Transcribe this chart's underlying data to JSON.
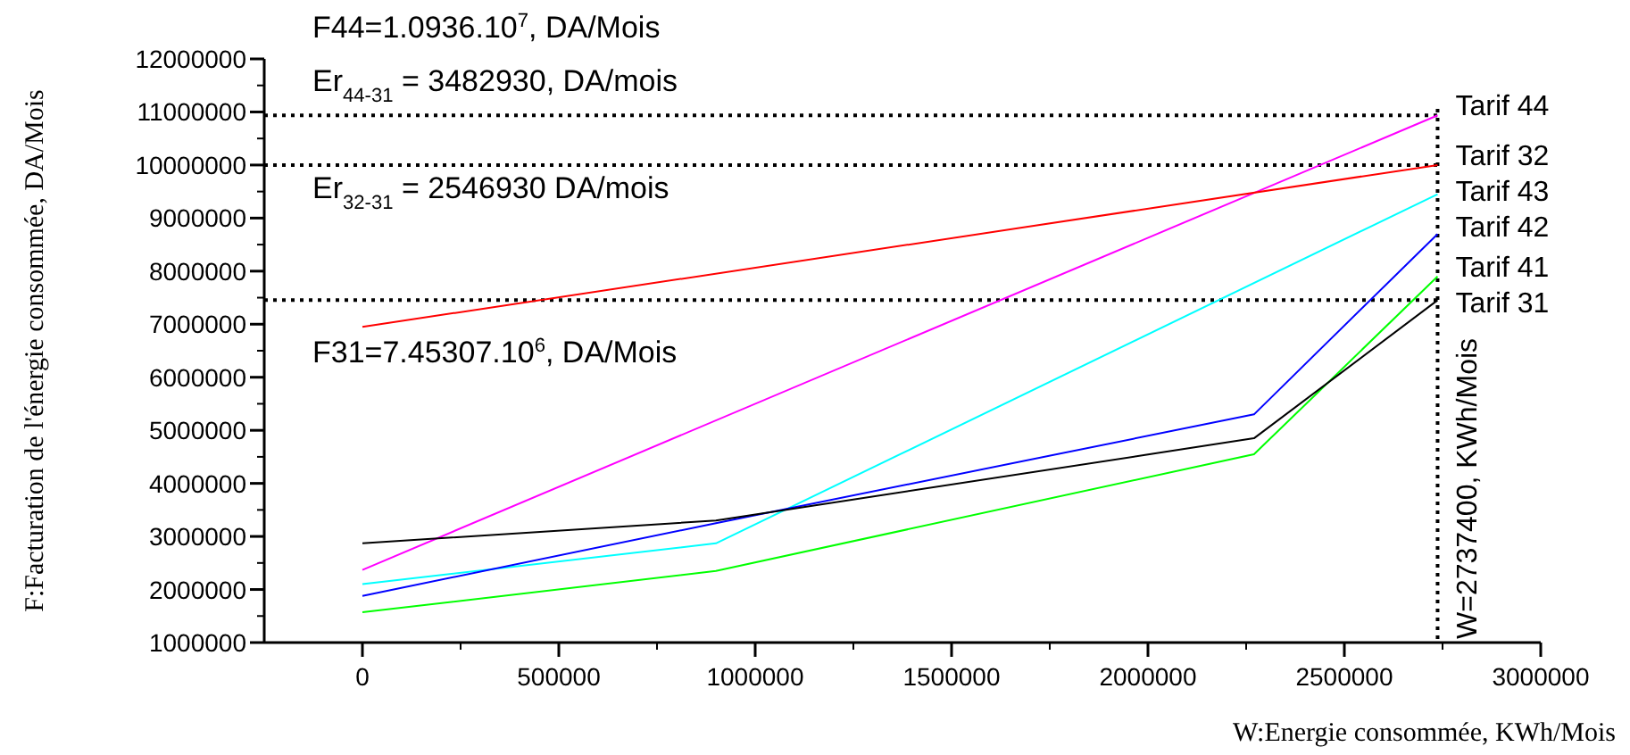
{
  "chart_data": {
    "type": "line",
    "xlabel": "W:Energie consommée, KWh/Mois",
    "ylabel": "F:Facturation de l'énergie consommée, DA/Mois",
    "xlim": [
      -250000,
      3000000
    ],
    "xticks": [
      0,
      500000,
      1000000,
      1500000,
      2000000,
      2500000,
      3000000
    ],
    "ylim": [
      1000000,
      12000000
    ],
    "yticks": [
      1000000,
      2000000,
      3000000,
      4000000,
      5000000,
      6000000,
      7000000,
      8000000,
      9000000,
      10000000,
      11000000,
      12000000
    ],
    "grid": false,
    "marker": "none",
    "line_style": "solid",
    "series": [
      {
        "name": "Tarif 44",
        "color": "#ff00ff",
        "x": [
          0,
          2737400
        ],
        "values": [
          2370000,
          10936000
        ]
      },
      {
        "name": "Tarif 32",
        "color": "#ff0000",
        "x": [
          0,
          2737400
        ],
        "values": [
          6950000,
          10000000
        ]
      },
      {
        "name": "Tarif 43",
        "color": "#00ffff",
        "x": [
          0,
          900000,
          2737400
        ],
        "values": [
          2100000,
          2870000,
          9450000
        ]
      },
      {
        "name": "Tarif 42",
        "color": "#0000ff",
        "x": [
          0,
          900000,
          2270000,
          2737400
        ],
        "values": [
          1880000,
          3250000,
          5300000,
          8700000
        ]
      },
      {
        "name": "Tarif 41",
        "color": "#00ff00",
        "x": [
          0,
          900000,
          2270000,
          2737400
        ],
        "values": [
          1570000,
          2350000,
          4550000,
          7900000
        ]
      },
      {
        "name": "Tarif 31",
        "color": "#000000",
        "x": [
          0,
          900000,
          2270000,
          2737400
        ],
        "values": [
          2870000,
          3300000,
          4850000,
          7453070
        ]
      }
    ],
    "ref_lines": [
      {
        "axis": "y",
        "value": 10936000,
        "line_style": "dotted",
        "color": "#000000"
      },
      {
        "axis": "y",
        "value": 10000000,
        "line_style": "dotted",
        "color": "#000000"
      },
      {
        "axis": "y",
        "value": 7453070,
        "line_style": "dotted",
        "color": "#000000"
      },
      {
        "axis": "x",
        "value": 2737400,
        "label": "W=2737400, KWh/Mois",
        "line_style": "dotted",
        "color": "#000000"
      }
    ],
    "annotations": [
      "F44=1.0936.10$^{7}$, DA/Mois",
      "Er$_{44-31}$ = 3482930, DA/mois",
      "Er$_{32-31}$ = 2546930 DA/mois",
      "F31=7.45307.10$^{6}$,  DA/Mois"
    ]
  }
}
